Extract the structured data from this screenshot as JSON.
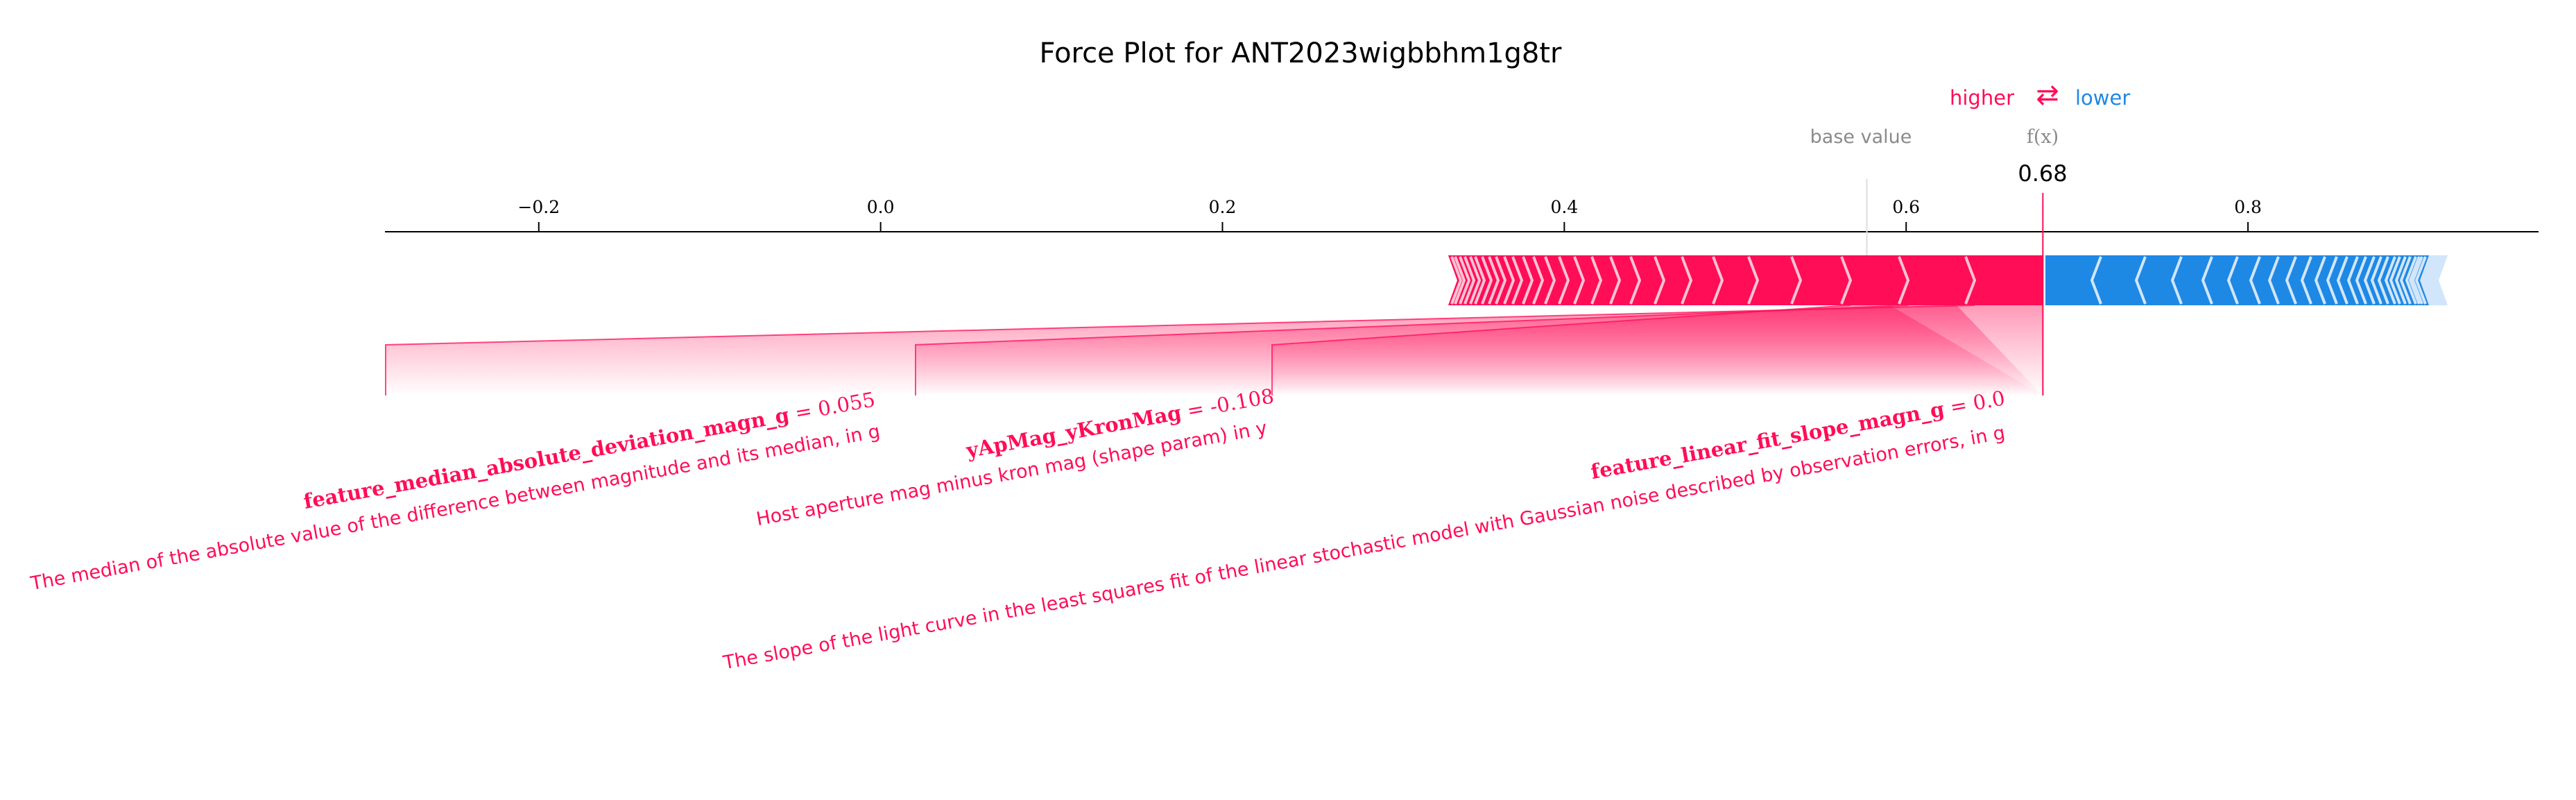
{
  "chart_data": {
    "type": "force",
    "title": "Force Plot for ANT2023wigbbhm1g8tr",
    "legend": {
      "higher": "higher",
      "arrows": "⇄",
      "lower": "lower"
    },
    "base_value_label": "base value",
    "fx_label": "f(x)",
    "fx_value_label": "0.68",
    "base_value": 0.577,
    "fx": 0.68,
    "xlim": [
      -0.29,
      0.97
    ],
    "ticks": [
      {
        "value": -0.2,
        "label": "−0.2"
      },
      {
        "value": 0.0,
        "label": "0.0"
      },
      {
        "value": 0.2,
        "label": "0.2"
      },
      {
        "value": 0.4,
        "label": "0.4"
      },
      {
        "value": 0.6,
        "label": "0.6"
      },
      {
        "value": 0.8,
        "label": "0.8"
      }
    ],
    "positive_range": [
      0.341,
      0.68
    ],
    "negative_range": [
      0.68,
      0.917
    ],
    "positive_contributions": [
      0.045,
      0.039,
      0.034,
      0.029,
      0.025,
      0.021,
      0.018,
      0.016,
      0.014,
      0.012,
      0.011,
      0.01,
      0.009,
      0.008,
      0.007,
      0.006,
      0.006,
      0.005,
      0.005,
      0.004,
      0.004,
      0.004,
      0.003,
      0.003,
      0.003,
      0.003,
      0.002,
      0.002
    ],
    "negative_contributions": [
      0.034,
      0.026,
      0.021,
      0.018,
      0.015,
      0.013,
      0.011,
      0.01,
      0.009,
      0.008,
      0.007,
      0.006,
      0.006,
      0.005,
      0.005,
      0.004,
      0.004,
      0.004,
      0.003,
      0.003,
      0.003,
      0.003,
      0.002,
      0.002,
      0.002,
      0.002
    ],
    "labeled_features": [
      {
        "name": "feature_median_absolute_deviation_magn_g",
        "value_text": " = 0.055",
        "description": "The median of the absolute value of the difference between magnitude and its median, in g",
        "segment": [
          0.635,
          0.68
        ]
      },
      {
        "name": "yApMag_yKronMag",
        "value_text": " = -0.108",
        "description": "Host aperture mag minus kron mag (shape param) in y",
        "segment": [
          0.596,
          0.635
        ]
      },
      {
        "name": "feature_linear_fit_slope_magn_g",
        "value_text": " = 0.0",
        "description": "The slope of the light curve in the least squares fit of the linear stochastic model with Gaussian noise described by observation errors, in g",
        "segment": [
          0.562,
          0.596
        ]
      }
    ],
    "colors": {
      "positive": "#ff0d57",
      "negative": "#1e88e5",
      "positive_light": "#ffc3d5",
      "negative_light": "#d1e6fa",
      "base_line": "#dddddd"
    }
  }
}
